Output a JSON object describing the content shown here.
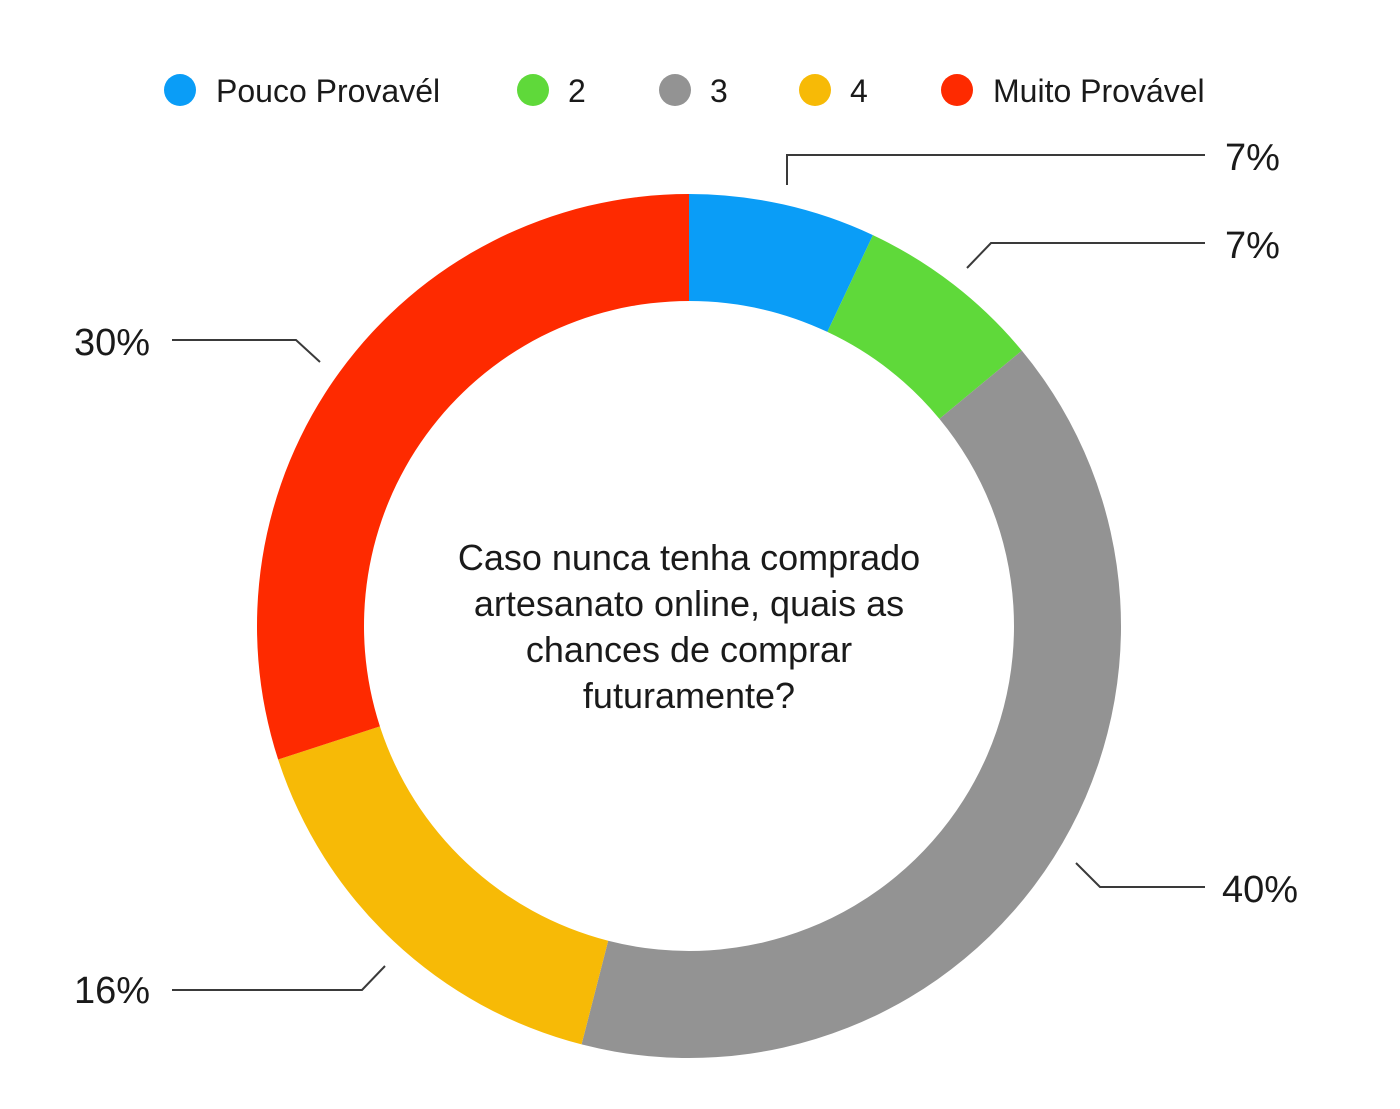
{
  "chart_data": {
    "type": "pie",
    "variant": "donut",
    "title_lines": [
      "Caso nunca tenha comprado",
      "artesanato online, quais as",
      "chances de comprar",
      "futuramente?"
    ],
    "categories": [
      "Pouco Provavél",
      "2",
      "3",
      "4",
      "Muito Provável"
    ],
    "values": [
      7,
      7,
      40,
      16,
      30
    ],
    "value_labels": [
      "7%",
      "7%",
      "40%",
      "16%",
      "30%"
    ],
    "colors": [
      "#0a9df7",
      "#5fd93a",
      "#939393",
      "#f7ba06",
      "#fe2a00"
    ],
    "legend_position": "top",
    "start_angle_deg": 0,
    "direction": "clockwise"
  }
}
